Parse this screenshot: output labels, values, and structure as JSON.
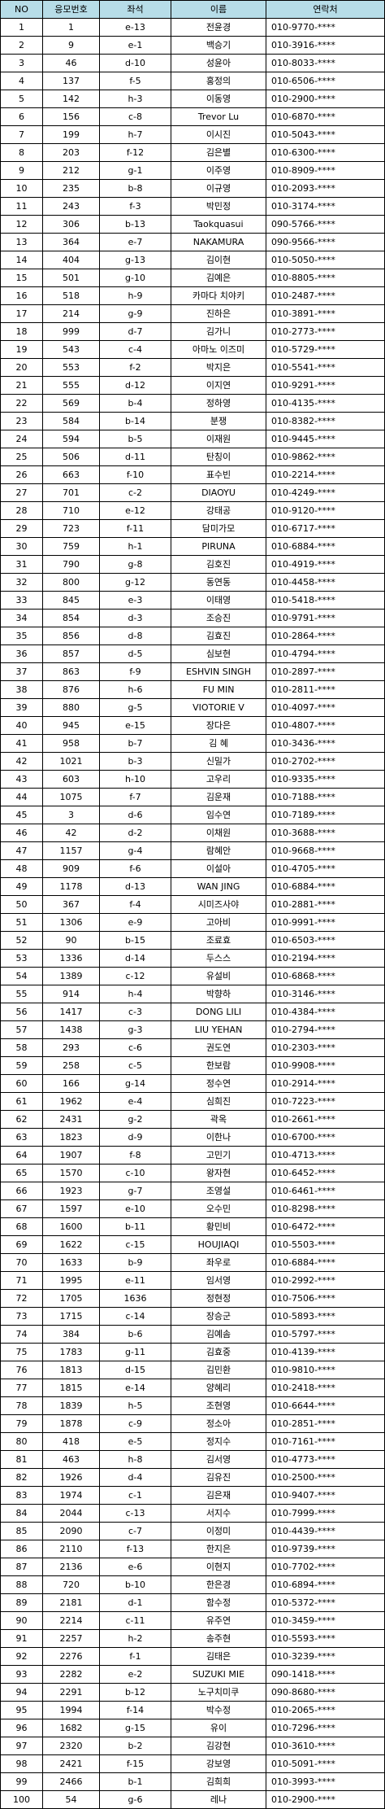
{
  "headers": [
    "NO",
    "응모번호",
    "좌석",
    "이름",
    "연락처"
  ],
  "rows": [
    [
      "1",
      "1",
      "e-13",
      "전윤경",
      "010-9770-****"
    ],
    [
      "2",
      "9",
      "e-1",
      "백승기",
      "010-3916-****"
    ],
    [
      "3",
      "46",
      "d-10",
      "성윤아",
      "010-8033-****"
    ],
    [
      "4",
      "137",
      "f-5",
      "홍정의",
      "010-6506-****"
    ],
    [
      "5",
      "142",
      "h-3",
      "이동영",
      "010-2900-****"
    ],
    [
      "6",
      "156",
      "c-8",
      "Trevor Lu",
      "010-6870-****"
    ],
    [
      "7",
      "199",
      "h-7",
      "이시진",
      "010-5043-****"
    ],
    [
      "8",
      "203",
      "f-12",
      "김은별",
      "010-6300-****"
    ],
    [
      "9",
      "212",
      "g-1",
      "이주영",
      "010-8909-****"
    ],
    [
      "10",
      "235",
      "b-8",
      "이규영",
      "010-2093-****"
    ],
    [
      "11",
      "243",
      "f-3",
      "박민정",
      "010-3174-****"
    ],
    [
      "12",
      "306",
      "b-13",
      "Taokquasui",
      "090-5766-****"
    ],
    [
      "13",
      "364",
      "e-7",
      "NAKAMURA",
      "090-9566-****"
    ],
    [
      "14",
      "404",
      "g-13",
      "김이현",
      "010-5050-****"
    ],
    [
      "15",
      "501",
      "g-10",
      "김예은",
      "010-8805-****"
    ],
    [
      "16",
      "518",
      "h-9",
      "카마다 치야키",
      "010-2487-****"
    ],
    [
      "17",
      "214",
      "g-9",
      "진하은",
      "010-3891-****"
    ],
    [
      "18",
      "999",
      "d-7",
      "김가니",
      "010-2773-****"
    ],
    [
      "19",
      "543",
      "c-4",
      "아마노 이즈미",
      "010-5729-****"
    ],
    [
      "20",
      "553",
      "f-2",
      "박지은",
      "010-5541-****"
    ],
    [
      "21",
      "555",
      "d-12",
      "이지연",
      "010-9291-****"
    ],
    [
      "22",
      "569",
      "b-4",
      "정하영",
      "010-4135-****"
    ],
    [
      "23",
      "584",
      "b-14",
      "분쟁",
      "010-8382-****"
    ],
    [
      "24",
      "594",
      "b-5",
      "이재원",
      "010-9445-****"
    ],
    [
      "25",
      "506",
      "d-11",
      "탄칭이",
      "010-9862-****"
    ],
    [
      "26",
      "663",
      "f-10",
      "표수빈",
      "010-2214-****"
    ],
    [
      "27",
      "701",
      "c-2",
      "DIAOYU",
      "010-4249-****"
    ],
    [
      "28",
      "710",
      "e-12",
      "강태공",
      "010-9120-****"
    ],
    [
      "29",
      "723",
      "f-11",
      "담미가모",
      "010-6717-****"
    ],
    [
      "30",
      "759",
      "h-1",
      "PIRUNA",
      "010-6884-****"
    ],
    [
      "31",
      "790",
      "g-8",
      "김호진",
      "010-4919-****"
    ],
    [
      "32",
      "800",
      "g-12",
      "동연동",
      "010-4458-****"
    ],
    [
      "33",
      "845",
      "e-3",
      "이태영",
      "010-5418-****"
    ],
    [
      "34",
      "854",
      "d-3",
      "조승진",
      "010-9791-****"
    ],
    [
      "35",
      "856",
      "d-8",
      "김효진",
      "010-2864-****"
    ],
    [
      "36",
      "857",
      "d-5",
      "심보현",
      "010-4794-****"
    ],
    [
      "37",
      "863",
      "f-9",
      "ESHVIN SINGH",
      "010-2897-****"
    ],
    [
      "38",
      "876",
      "h-6",
      "FU MIN",
      "010-2811-****"
    ],
    [
      "39",
      "880",
      "g-5",
      "VIOTORIE V",
      "010-4097-****"
    ],
    [
      "40",
      "945",
      "e-15",
      "장다은",
      "010-4807-****"
    ],
    [
      "41",
      "958",
      "b-7",
      "김 혜",
      "010-3436-****"
    ],
    [
      "42",
      "1021",
      "b-3",
      "신밀가",
      "010-2702-****"
    ],
    [
      "43",
      "603",
      "h-10",
      "고우리",
      "010-9335-****"
    ],
    [
      "44",
      "1075",
      "f-7",
      "김운재",
      "010-7188-****"
    ],
    [
      "45",
      "3",
      "d-6",
      "임수연",
      "010-7189-****"
    ],
    [
      "46",
      "42",
      "d-2",
      "이채원",
      "010-3688-****"
    ],
    [
      "47",
      "1157",
      "g-4",
      "람혜안",
      "010-9668-****"
    ],
    [
      "48",
      "909",
      "f-6",
      "이설아",
      "010-4705-****"
    ],
    [
      "49",
      "1178",
      "d-13",
      "WAN JING",
      "010-6884-****"
    ],
    [
      "50",
      "367",
      "f-4",
      "시미즈사야",
      "010-2881-****"
    ],
    [
      "51",
      "1306",
      "e-9",
      "고아비",
      "010-9991-****"
    ],
    [
      "52",
      "90",
      "b-15",
      "조료효",
      "010-6503-****"
    ],
    [
      "53",
      "1336",
      "d-14",
      "두스스",
      "010-2194-****"
    ],
    [
      "54",
      "1389",
      "c-12",
      "유설비",
      "010-6868-****"
    ],
    [
      "55",
      "914",
      "h-4",
      "박향하",
      "010-3146-****"
    ],
    [
      "56",
      "1417",
      "c-3",
      "DONG LILI",
      "010-4384-****"
    ],
    [
      "57",
      "1438",
      "g-3",
      "LIU YEHAN",
      "010-2794-****"
    ],
    [
      "58",
      "293",
      "c-6",
      "권도연",
      "010-2303-****"
    ],
    [
      "59",
      "258",
      "c-5",
      "한보람",
      "010-9908-****"
    ],
    [
      "60",
      "166",
      "g-14",
      "정수연",
      "010-2914-****"
    ],
    [
      "61",
      "1962",
      "e-4",
      "심희진",
      "010-7223-****"
    ],
    [
      "62",
      "2431",
      "g-2",
      "곽옥",
      "010-2661-****"
    ],
    [
      "63",
      "1823",
      "d-9",
      "이한나",
      "010-6700-****"
    ],
    [
      "64",
      "1907",
      "f-8",
      "고민기",
      "010-4713-****"
    ],
    [
      "65",
      "1570",
      "c-10",
      "왕자현",
      "010-6452-****"
    ],
    [
      "66",
      "1923",
      "g-7",
      "조영설",
      "010-6461-****"
    ],
    [
      "67",
      "1597",
      "e-10",
      "오수민",
      "010-8298-****"
    ],
    [
      "68",
      "1600",
      "b-11",
      "황민비",
      "010-6472-****"
    ],
    [
      "69",
      "1622",
      "c-15",
      "HOUJIAQI",
      "010-5503-****"
    ],
    [
      "70",
      "1633",
      "b-9",
      "좌우로",
      "010-6884-****"
    ],
    [
      "71",
      "1995",
      "e-11",
      "임서영",
      "010-2992-****"
    ],
    [
      "72",
      "1705",
      "1636",
      "정현정",
      "010-7506-****"
    ],
    [
      "73",
      "1715",
      "c-14",
      "장승군",
      "010-5893-****"
    ],
    [
      "74",
      "384",
      "b-6",
      "김예솜",
      "010-5797-****"
    ],
    [
      "75",
      "1783",
      "g-11",
      "김효중",
      "010-4139-****"
    ],
    [
      "76",
      "1813",
      "d-15",
      "김민환",
      "010-9810-****"
    ],
    [
      "77",
      "1815",
      "e-14",
      "양혜리",
      "010-2418-****"
    ],
    [
      "78",
      "1839",
      "h-5",
      "조현영",
      "010-6644-****"
    ],
    [
      "79",
      "1878",
      "c-9",
      "정소아",
      "010-2851-****"
    ],
    [
      "80",
      "418",
      "e-5",
      "정지수",
      "010-7161-****"
    ],
    [
      "81",
      "463",
      "h-8",
      "김서영",
      "010-4773-****"
    ],
    [
      "82",
      "1926",
      "d-4",
      "김유진",
      "010-2500-****"
    ],
    [
      "83",
      "1974",
      "c-1",
      "김은재",
      "010-9407-****"
    ],
    [
      "84",
      "2044",
      "c-13",
      "서지수",
      "010-7999-****"
    ],
    [
      "85",
      "2090",
      "c-7",
      "이정미",
      "010-4439-****"
    ],
    [
      "86",
      "2110",
      "f-13",
      "한지은",
      "010-9739-****"
    ],
    [
      "87",
      "2136",
      "e-6",
      "이현지",
      "010-7702-****"
    ],
    [
      "88",
      "720",
      "b-10",
      "한은경",
      "010-6894-****"
    ],
    [
      "89",
      "2181",
      "d-1",
      "함수정",
      "010-5372-****"
    ],
    [
      "90",
      "2214",
      "c-11",
      "유주연",
      "010-3459-****"
    ],
    [
      "91",
      "2257",
      "h-2",
      "송주현",
      "010-5593-****"
    ],
    [
      "92",
      "2276",
      "f-1",
      "김태은",
      "010-3239-****"
    ],
    [
      "93",
      "2282",
      "e-2",
      "SUZUKI MIE",
      "090-1418-****"
    ],
    [
      "94",
      "2291",
      "b-12",
      "노구치미쿠",
      "090-8680-****"
    ],
    [
      "95",
      "1994",
      "f-14",
      "박수정",
      "010-2065-****"
    ],
    [
      "96",
      "1682",
      "g-15",
      "유이",
      "010-7296-****"
    ],
    [
      "97",
      "2320",
      "b-2",
      "김강현",
      "010-3610-****"
    ],
    [
      "98",
      "2421",
      "f-15",
      "강보영",
      "010-5091-****"
    ],
    [
      "99",
      "2466",
      "b-1",
      "김희희",
      "010-3993-****"
    ],
    [
      "100",
      "54",
      "g-6",
      "레나",
      "010-2900-****"
    ]
  ]
}
